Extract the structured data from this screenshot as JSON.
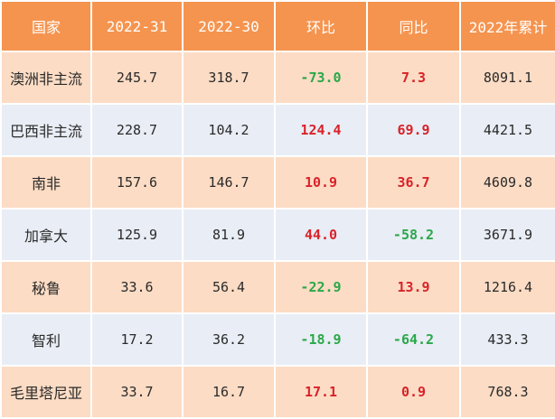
{
  "colors": {
    "header_bg": "#f5944f",
    "header_text": "#ffffff",
    "row_odd_bg": "#fcdcc4",
    "row_even_bg": "#e9edf5",
    "positive": "#d9222a",
    "negative": "#2aa84a",
    "text": "#2a2a2a"
  },
  "table": {
    "headers": [
      "国家",
      "2022-31",
      "2022-30",
      "环比",
      "同比",
      "2022年累计"
    ],
    "rows": [
      [
        "澳洲非主流",
        "245.7",
        "318.7",
        "-73.0",
        "7.3",
        "8091.1"
      ],
      [
        "巴西非主流",
        "228.7",
        "104.2",
        "124.4",
        "69.9",
        "4421.5"
      ],
      [
        "南非",
        "157.6",
        "146.7",
        "10.9",
        "36.7",
        "4609.8"
      ],
      [
        "加拿大",
        "125.9",
        "81.9",
        "44.0",
        "-58.2",
        "3671.9"
      ],
      [
        "秘鲁",
        "33.6",
        "56.4",
        "-22.9",
        "13.9",
        "1216.4"
      ],
      [
        "智利",
        "17.2",
        "36.2",
        "-18.9",
        "-64.2",
        "433.3"
      ],
      [
        "毛里塔尼亚",
        "33.7",
        "16.7",
        "17.1",
        "0.9",
        "768.3"
      ]
    ]
  }
}
